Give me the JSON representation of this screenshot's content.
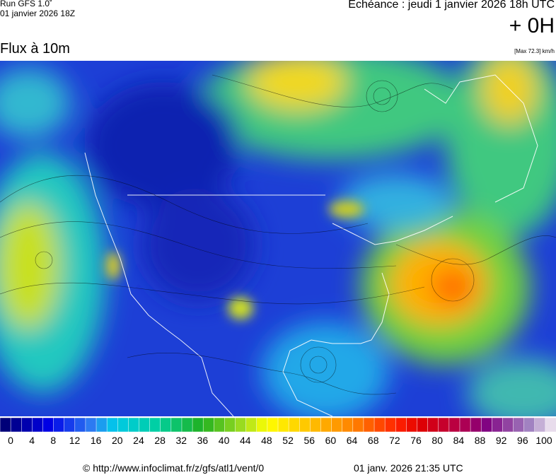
{
  "header": {
    "run": "Run GFS 1.0˚",
    "run_date": "01 janvier 2026 18Z",
    "forecast": "Echéance : jeudi 1 janvier 2026 18h UTC",
    "offset": "+ 0H",
    "title": "Flux à 10m",
    "max": "[Max 72.3] km/h"
  },
  "scale": {
    "labels": [
      0,
      4,
      8,
      12,
      16,
      20,
      24,
      28,
      32,
      36,
      40,
      44,
      48,
      52,
      56,
      60,
      64,
      68,
      72,
      76,
      80,
      84,
      88,
      92,
      96,
      100
    ]
  },
  "footer": {
    "source": "© http://www.infoclimat.fr/z/gfs/atl1/vent/0",
    "generated": "01 janv. 2026 21:35 UTC"
  }
}
